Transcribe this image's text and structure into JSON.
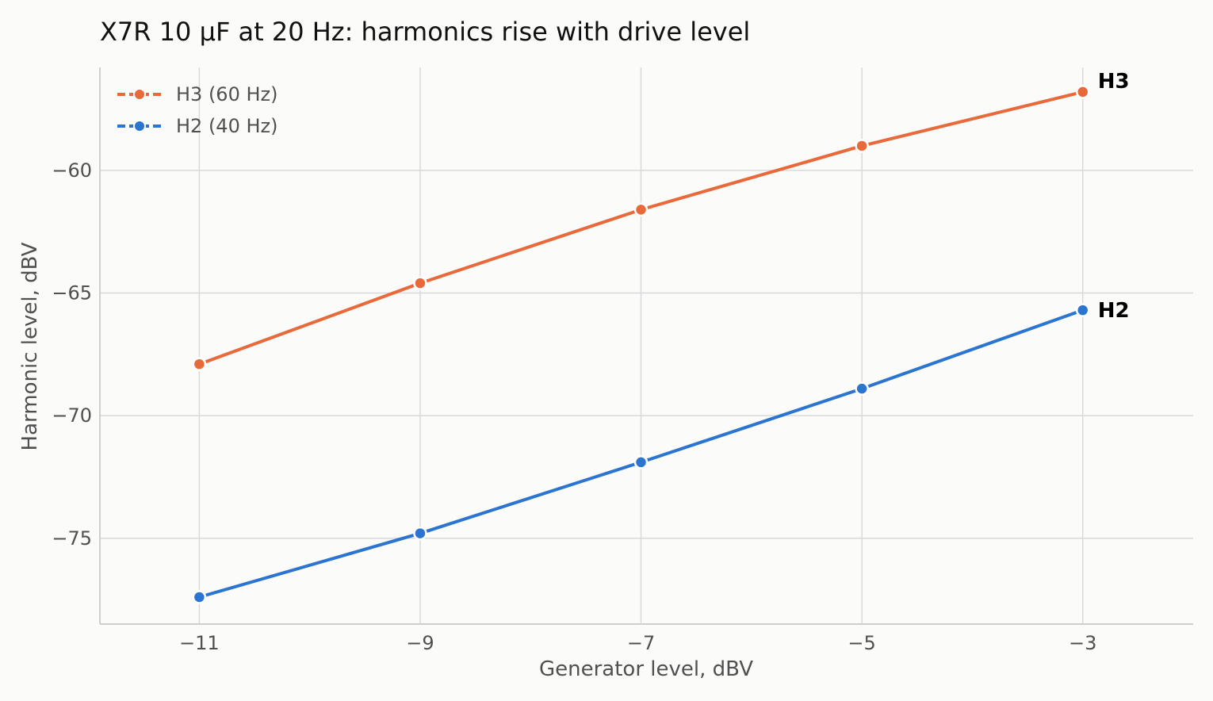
{
  "chart_data": {
    "type": "line",
    "title": "X7R 10 µF at 20 Hz: harmonics rise with drive level",
    "xlabel": "Generator level, dBV",
    "ylabel": "Harmonic level, dBV",
    "x": [
      -11,
      -9,
      -7,
      -5,
      -3
    ],
    "xlim": [
      -11.9,
      -2.0
    ],
    "ylim": [
      -78.5,
      -55.8
    ],
    "xticks": [
      -11,
      -9,
      -7,
      -5,
      -3
    ],
    "yticks": [
      -75,
      -70,
      -65,
      -60
    ],
    "grid": true,
    "legend_position": "top-left",
    "series": [
      {
        "name": "H3 (60 Hz)",
        "end_label": "H3",
        "color": "#e8693a",
        "values": [
          -67.9,
          -64.6,
          -61.6,
          -59.0,
          -56.8
        ]
      },
      {
        "name": "H2 (40 Hz)",
        "end_label": "H2",
        "color": "#2b74d0",
        "values": [
          -77.4,
          -74.8,
          -71.9,
          -68.9,
          -65.7
        ]
      }
    ]
  }
}
